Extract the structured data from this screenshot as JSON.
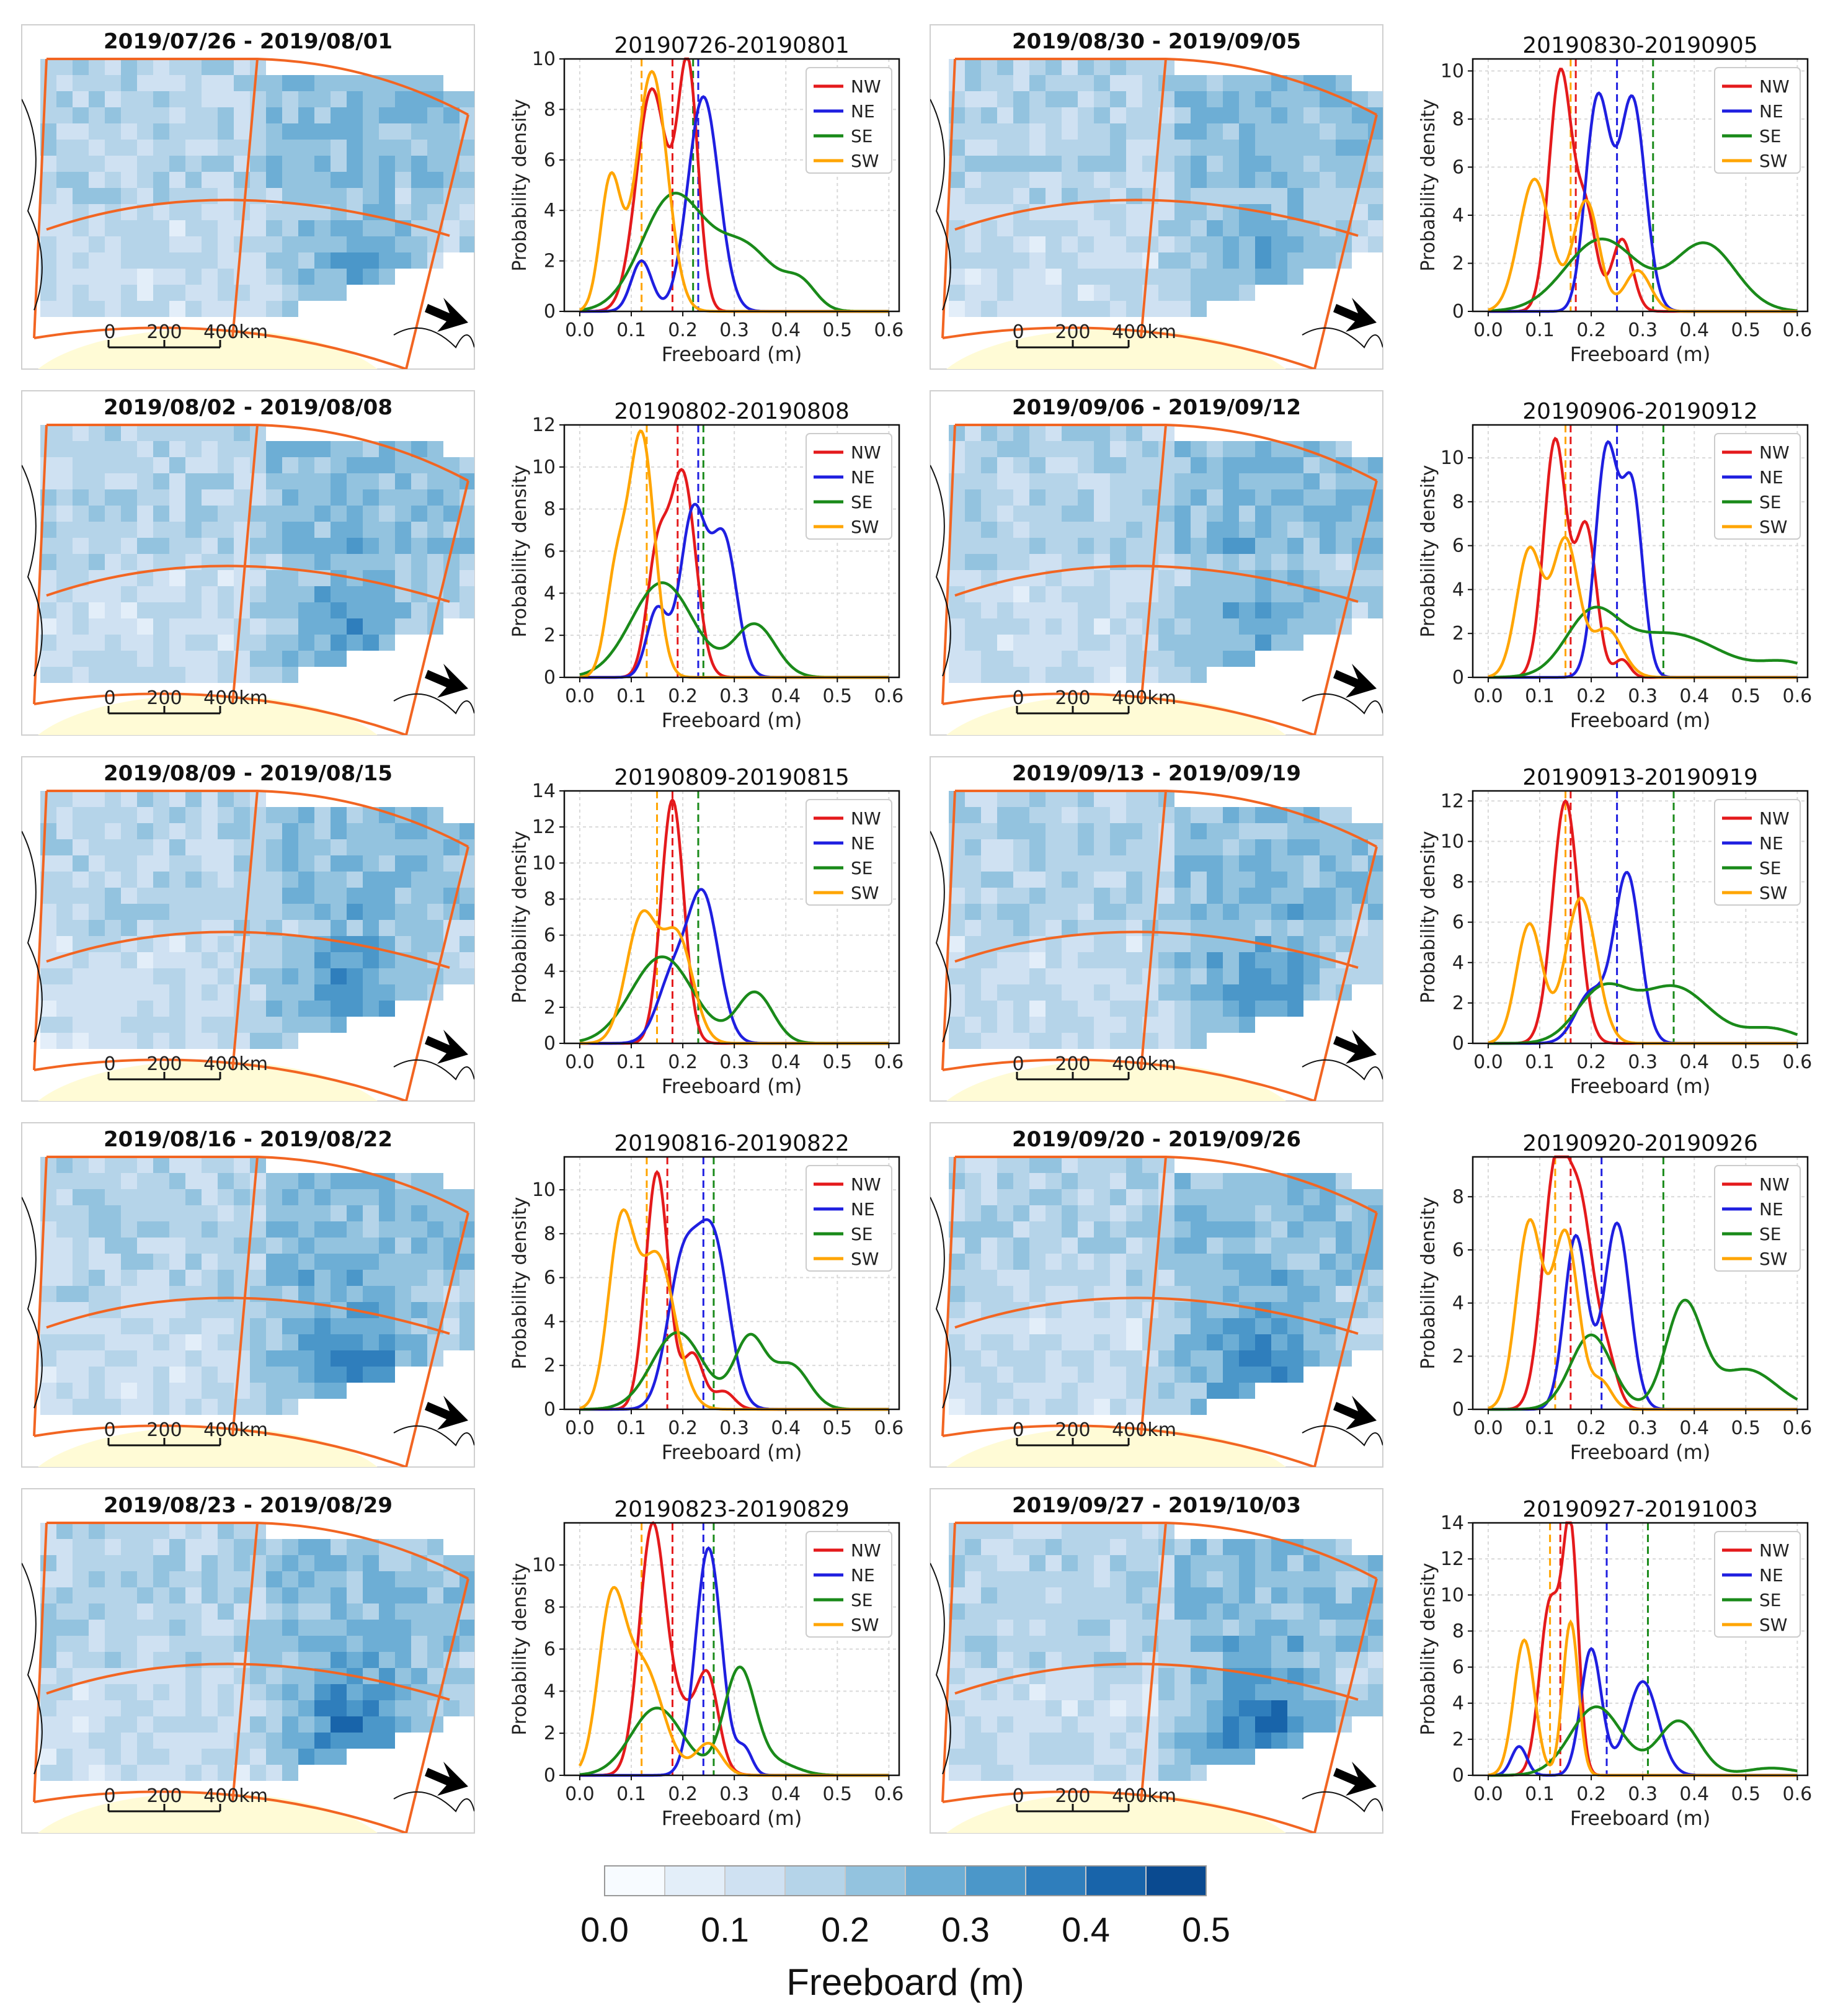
{
  "figure": {
    "colorbar": {
      "ticks": [
        "0.0",
        "0.1",
        "0.2",
        "0.3",
        "0.4",
        "0.5"
      ],
      "label": "Freeboard (m)",
      "colors": [
        "#f7fbff",
        "#e3eef9",
        "#cfe1f2",
        "#b5d4e9",
        "#93c3df",
        "#6daed5",
        "#4b97c9",
        "#2f7ebc",
        "#1864aa",
        "#0a4a90"
      ]
    },
    "scalebar": {
      "ticks": [
        "0",
        "200",
        "400km"
      ]
    },
    "legend_colors": {
      "NW": "#e41a1c",
      "NE": "#1f1fe0",
      "SE": "#1a8a1a",
      "SW": "#ffa500"
    },
    "map_titles": [
      "2019/07/26 - 2019/08/01",
      "2019/08/02 - 2019/08/08",
      "2019/08/09 - 2019/08/15",
      "2019/08/16 - 2019/08/22",
      "2019/08/23 - 2019/08/29",
      "2019/08/30 - 2019/09/05",
      "2019/09/06 - 2019/09/12",
      "2019/09/13 - 2019/09/19",
      "2019/09/20 - 2019/09/26",
      "2019/09/27 - 2019/10/03"
    ]
  },
  "chart_data": [
    {
      "type": "line",
      "title": "20190726-20190801",
      "xlabel": "Freeboard (m)",
      "ylabel": "Probability density",
      "xlim": [
        -0.03,
        0.62
      ],
      "ylim": [
        0,
        10
      ],
      "yticks": [
        0,
        2,
        4,
        6,
        8,
        10
      ],
      "xticks": [
        0.0,
        0.1,
        0.2,
        0.3,
        0.4,
        0.5,
        0.6
      ],
      "legend": [
        "NW",
        "NE",
        "SE",
        "SW"
      ],
      "means": {
        "NW": 0.18,
        "NE": 0.23,
        "SE": 0.22,
        "SW": 0.12
      },
      "series": [
        {
          "name": "NW",
          "peaks": [
            [
              0.14,
              8.8,
              0.03
            ],
            [
              0.21,
              9.5,
              0.02
            ]
          ]
        },
        {
          "name": "NE",
          "peaks": [
            [
              0.12,
              2.0,
              0.02
            ],
            [
              0.24,
              8.5,
              0.03
            ]
          ]
        },
        {
          "name": "SE",
          "peaks": [
            [
              0.18,
              4.5,
              0.06
            ],
            [
              0.32,
              2.5,
              0.06
            ],
            [
              0.43,
              0.9,
              0.03
            ]
          ]
        },
        {
          "name": "SW",
          "peaks": [
            [
              0.06,
              5.2,
              0.02
            ],
            [
              0.14,
              9.5,
              0.03
            ]
          ]
        }
      ]
    },
    {
      "type": "line",
      "title": "20190802-20190808",
      "xlabel": "Freeboard (m)",
      "ylabel": "Probability density",
      "xlim": [
        -0.03,
        0.62
      ],
      "ylim": [
        0,
        12
      ],
      "yticks": [
        0,
        2,
        4,
        6,
        8,
        10,
        12
      ],
      "xticks": [
        0.0,
        0.1,
        0.2,
        0.3,
        0.4,
        0.5,
        0.6
      ],
      "legend": [
        "NW",
        "NE",
        "SE",
        "SW"
      ],
      "means": {
        "NW": 0.19,
        "NE": 0.23,
        "SE": 0.24,
        "SW": 0.13
      },
      "series": [
        {
          "name": "NW",
          "peaks": [
            [
              0.15,
              5.5,
              0.02
            ],
            [
              0.2,
              9.6,
              0.025
            ]
          ]
        },
        {
          "name": "NE",
          "peaks": [
            [
              0.15,
              3.2,
              0.02
            ],
            [
              0.22,
              7.8,
              0.025
            ],
            [
              0.28,
              6.5,
              0.025
            ]
          ]
        },
        {
          "name": "SE",
          "peaks": [
            [
              0.16,
              4.5,
              0.06
            ],
            [
              0.34,
              2.5,
              0.04
            ]
          ]
        },
        {
          "name": "SW",
          "peaks": [
            [
              0.07,
              4.5,
              0.02
            ],
            [
              0.12,
              11.5,
              0.025
            ]
          ]
        }
      ]
    },
    {
      "type": "line",
      "title": "20190809-20190815",
      "xlabel": "Freeboard (m)",
      "ylabel": "Probability density",
      "xlim": [
        -0.03,
        0.62
      ],
      "ylim": [
        0,
        14
      ],
      "yticks": [
        0,
        2,
        4,
        6,
        8,
        10,
        12,
        14
      ],
      "xticks": [
        0.0,
        0.1,
        0.2,
        0.3,
        0.4,
        0.5,
        0.6
      ],
      "legend": [
        "NW",
        "NE",
        "SE",
        "SW"
      ],
      "means": {
        "NW": 0.18,
        "NE": 0.23,
        "SE": 0.23,
        "SW": 0.15
      },
      "series": [
        {
          "name": "NW",
          "peaks": [
            [
              0.18,
              13.5,
              0.022
            ]
          ]
        },
        {
          "name": "NE",
          "peaks": [
            [
              0.18,
              3.5,
              0.03
            ],
            [
              0.24,
              8.0,
              0.03
            ]
          ]
        },
        {
          "name": "SE",
          "peaks": [
            [
              0.16,
              4.8,
              0.06
            ],
            [
              0.34,
              2.8,
              0.035
            ]
          ]
        },
        {
          "name": "SW",
          "peaks": [
            [
              0.12,
              6.9,
              0.03
            ],
            [
              0.19,
              5.8,
              0.03
            ]
          ]
        }
      ]
    },
    {
      "type": "line",
      "title": "20190816-20190822",
      "xlabel": "Freeboard (m)",
      "ylabel": "Probability density",
      "xlim": [
        -0.03,
        0.62
      ],
      "ylim": [
        0,
        11.5
      ],
      "yticks": [
        0,
        2,
        4,
        6,
        8,
        10
      ],
      "xticks": [
        0.0,
        0.1,
        0.2,
        0.3,
        0.4,
        0.5,
        0.6
      ],
      "legend": [
        "NW",
        "NE",
        "SE",
        "SW"
      ],
      "means": {
        "NW": 0.17,
        "NE": 0.24,
        "SE": 0.26,
        "SW": 0.13
      },
      "series": [
        {
          "name": "NW",
          "peaks": [
            [
              0.15,
              10.8,
              0.022
            ],
            [
              0.22,
              2.5,
              0.02
            ],
            [
              0.28,
              0.8,
              0.02
            ]
          ]
        },
        {
          "name": "NE",
          "peaks": [
            [
              0.2,
              6.5,
              0.03
            ],
            [
              0.26,
              7.4,
              0.03
            ]
          ]
        },
        {
          "name": "SE",
          "peaks": [
            [
              0.19,
              3.5,
              0.05
            ],
            [
              0.33,
              3.2,
              0.03
            ],
            [
              0.41,
              2.0,
              0.035
            ]
          ]
        },
        {
          "name": "SW",
          "peaks": [
            [
              0.08,
              8.0,
              0.025
            ],
            [
              0.15,
              7.0,
              0.035
            ]
          ]
        }
      ]
    },
    {
      "type": "line",
      "title": "20190823-20190829",
      "xlabel": "Freeboard (m)",
      "ylabel": "Probability density",
      "xlim": [
        -0.03,
        0.62
      ],
      "ylim": [
        0,
        12
      ],
      "yticks": [
        0,
        2,
        4,
        6,
        8,
        10
      ],
      "xticks": [
        0.0,
        0.1,
        0.2,
        0.3,
        0.4,
        0.5,
        0.6
      ],
      "legend": [
        "NW",
        "NE",
        "SE",
        "SW"
      ],
      "means": {
        "NW": 0.18,
        "NE": 0.24,
        "SE": 0.26,
        "SW": 0.12
      },
      "series": [
        {
          "name": "NW",
          "peaks": [
            [
              0.14,
              11.0,
              0.025
            ],
            [
              0.2,
              3.0,
              0.04
            ],
            [
              0.25,
              3.5,
              0.02
            ]
          ]
        },
        {
          "name": "NE",
          "peaks": [
            [
              0.25,
              10.8,
              0.025
            ],
            [
              0.32,
              1.2,
              0.015
            ]
          ]
        },
        {
          "name": "SE",
          "peaks": [
            [
              0.15,
              3.2,
              0.05
            ],
            [
              0.31,
              5.0,
              0.03
            ],
            [
              0.38,
              0.6,
              0.04
            ]
          ]
        },
        {
          "name": "SW",
          "peaks": [
            [
              0.06,
              7.0,
              0.025
            ],
            [
              0.12,
              5.3,
              0.04
            ],
            [
              0.25,
              1.5,
              0.025
            ]
          ]
        }
      ]
    },
    {
      "type": "line",
      "title": "20190830-20190905",
      "xlabel": "Freeboard (m)",
      "ylabel": "Probability density",
      "xlim": [
        -0.03,
        0.62
      ],
      "ylim": [
        0,
        10.5
      ],
      "yticks": [
        0,
        2,
        4,
        6,
        8,
        10
      ],
      "xticks": [
        0.0,
        0.1,
        0.2,
        0.3,
        0.4,
        0.5,
        0.6
      ],
      "legend": [
        "NW",
        "NE",
        "SE",
        "SW"
      ],
      "means": {
        "NW": 0.17,
        "NE": 0.25,
        "SE": 0.32,
        "SW": 0.16
      },
      "series": [
        {
          "name": "NW",
          "peaks": [
            [
              0.14,
              9.9,
              0.022
            ],
            [
              0.19,
              4.0,
              0.02
            ],
            [
              0.26,
              3.0,
              0.02
            ]
          ]
        },
        {
          "name": "NE",
          "peaks": [
            [
              0.2,
              3.5,
              0.02
            ],
            [
              0.22,
              6.3,
              0.022
            ],
            [
              0.28,
              8.8,
              0.025
            ]
          ]
        },
        {
          "name": "SE",
          "peaks": [
            [
              0.22,
              3.0,
              0.07
            ],
            [
              0.42,
              2.8,
              0.06
            ]
          ]
        },
        {
          "name": "SW",
          "peaks": [
            [
              0.09,
              5.5,
              0.03
            ],
            [
              0.19,
              4.6,
              0.025
            ],
            [
              0.29,
              1.7,
              0.025
            ]
          ]
        }
      ]
    },
    {
      "type": "line",
      "title": "20190906-20190912",
      "xlabel": "Freeboard (m)",
      "ylabel": "Probability density",
      "xlim": [
        -0.03,
        0.62
      ],
      "ylim": [
        0,
        11.5
      ],
      "yticks": [
        0,
        2,
        4,
        6,
        8,
        10
      ],
      "xticks": [
        0.0,
        0.1,
        0.2,
        0.3,
        0.4,
        0.5,
        0.6
      ],
      "legend": [
        "NW",
        "NE",
        "SE",
        "SW"
      ],
      "means": {
        "NW": 0.16,
        "NE": 0.25,
        "SE": 0.34,
        "SW": 0.15
      },
      "series": [
        {
          "name": "NW",
          "peaks": [
            [
              0.13,
              10.8,
              0.022
            ],
            [
              0.19,
              6.8,
              0.02
            ],
            [
              0.26,
              0.8,
              0.015
            ]
          ]
        },
        {
          "name": "NE",
          "peaks": [
            [
              0.23,
              10.3,
              0.022
            ],
            [
              0.28,
              8.3,
              0.02
            ]
          ]
        },
        {
          "name": "SE",
          "peaks": [
            [
              0.2,
              2.5,
              0.05
            ],
            [
              0.35,
              2.0,
              0.1
            ],
            [
              0.58,
              0.6,
              0.05
            ]
          ]
        },
        {
          "name": "SW",
          "peaks": [
            [
              0.08,
              5.8,
              0.025
            ],
            [
              0.15,
              6.2,
              0.025
            ],
            [
              0.23,
              2.2,
              0.03
            ]
          ]
        }
      ]
    },
    {
      "type": "line",
      "title": "20190913-20190919",
      "xlabel": "Freeboard (m)",
      "ylabel": "Probability density",
      "xlim": [
        -0.03,
        0.62
      ],
      "ylim": [
        0,
        12.5
      ],
      "yticks": [
        0,
        2,
        4,
        6,
        8,
        10,
        12
      ],
      "xticks": [
        0.0,
        0.1,
        0.2,
        0.3,
        0.4,
        0.5,
        0.6
      ],
      "legend": [
        "NW",
        "NE",
        "SE",
        "SW"
      ],
      "means": {
        "NW": 0.16,
        "NE": 0.25,
        "SE": 0.36,
        "SW": 0.15
      },
      "series": [
        {
          "name": "NW",
          "peaks": [
            [
              0.15,
              12.0,
              0.025
            ]
          ]
        },
        {
          "name": "NE",
          "peaks": [
            [
              0.2,
              2.5,
              0.03
            ],
            [
              0.27,
              8.3,
              0.025
            ]
          ]
        },
        {
          "name": "SE",
          "peaks": [
            [
              0.22,
              2.5,
              0.05
            ],
            [
              0.36,
              2.8,
              0.07
            ],
            [
              0.55,
              0.7,
              0.05
            ]
          ]
        },
        {
          "name": "SW",
          "peaks": [
            [
              0.08,
              5.9,
              0.025
            ],
            [
              0.18,
              7.2,
              0.03
            ]
          ]
        }
      ]
    },
    {
      "type": "line",
      "title": "20190920-20190926",
      "xlabel": "Freeboard (m)",
      "ylabel": "Probability density",
      "xlim": [
        -0.03,
        0.62
      ],
      "ylim": [
        0,
        9.5
      ],
      "yticks": [
        0,
        2,
        4,
        6,
        8
      ],
      "xticks": [
        0.0,
        0.1,
        0.2,
        0.3,
        0.4,
        0.5,
        0.6
      ],
      "legend": [
        "NW",
        "NE",
        "SE",
        "SW"
      ],
      "means": {
        "NW": 0.16,
        "NE": 0.22,
        "SE": 0.34,
        "SW": 0.13
      },
      "series": [
        {
          "name": "NW",
          "peaks": [
            [
              0.13,
              8.7,
              0.025
            ],
            [
              0.18,
              7.0,
              0.025
            ],
            [
              0.23,
              1.8,
              0.02
            ]
          ]
        },
        {
          "name": "NE",
          "peaks": [
            [
              0.17,
              6.5,
              0.022
            ],
            [
              0.25,
              7.0,
              0.025
            ]
          ]
        },
        {
          "name": "SE",
          "peaks": [
            [
              0.2,
              2.8,
              0.04
            ],
            [
              0.38,
              3.9,
              0.035
            ],
            [
              0.5,
              1.5,
              0.06
            ]
          ]
        },
        {
          "name": "SW",
          "peaks": [
            [
              0.08,
              7.0,
              0.025
            ],
            [
              0.15,
              6.6,
              0.025
            ],
            [
              0.22,
              1.0,
              0.02
            ]
          ]
        }
      ]
    },
    {
      "type": "line",
      "title": "20190927-20191003",
      "xlabel": "Freeboard (m)",
      "ylabel": "Probability density",
      "xlim": [
        -0.03,
        0.62
      ],
      "ylim": [
        0,
        14
      ],
      "yticks": [
        0,
        2,
        4,
        6,
        8,
        10,
        12,
        14
      ],
      "xticks": [
        0.0,
        0.1,
        0.2,
        0.3,
        0.4,
        0.5,
        0.6
      ],
      "legend": [
        "NW",
        "NE",
        "SE",
        "SW"
      ],
      "means": {
        "NW": 0.14,
        "NE": 0.23,
        "SE": 0.31,
        "SW": 0.12
      },
      "series": [
        {
          "name": "NW",
          "peaks": [
            [
              0.12,
              9.5,
              0.02
            ],
            [
              0.16,
              13.0,
              0.015
            ]
          ]
        },
        {
          "name": "NE",
          "peaks": [
            [
              0.06,
              1.6,
              0.015
            ],
            [
              0.2,
              7.0,
              0.02
            ],
            [
              0.3,
              5.2,
              0.03
            ]
          ]
        },
        {
          "name": "SE",
          "peaks": [
            [
              0.21,
              3.8,
              0.05
            ],
            [
              0.37,
              3.0,
              0.04
            ],
            [
              0.55,
              0.4,
              0.05
            ]
          ]
        },
        {
          "name": "SW",
          "peaks": [
            [
              0.07,
              7.5,
              0.02
            ],
            [
              0.16,
              8.5,
              0.015
            ]
          ]
        }
      ]
    }
  ]
}
